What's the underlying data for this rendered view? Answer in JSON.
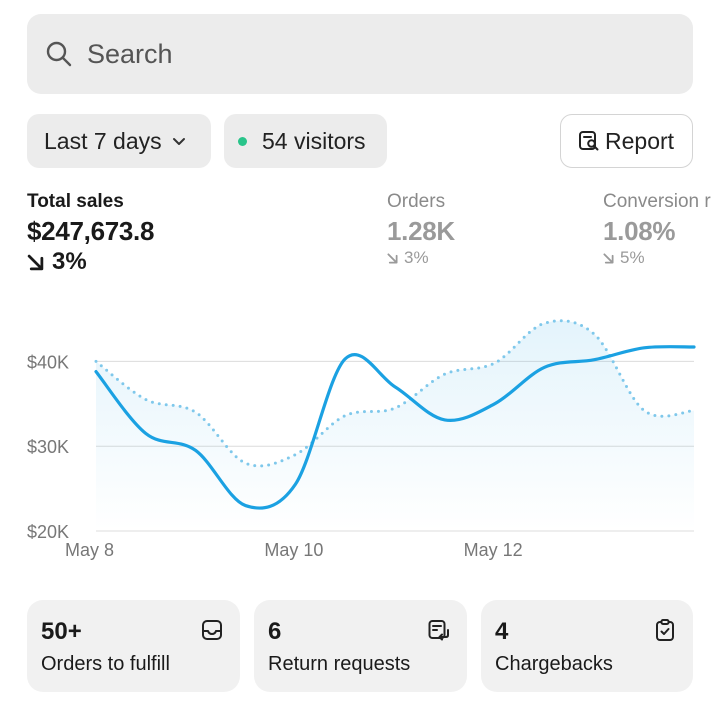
{
  "search": {
    "placeholder": "Search",
    "icon": "search-icon"
  },
  "filters": {
    "range_label": "Last 7 days",
    "visitors_label": "54 visitors",
    "visitors_dot_color": "#29c48a",
    "report_label": "Report"
  },
  "metrics": [
    {
      "title": "Total sales",
      "value": "$247,673.8",
      "change": "3%",
      "direction": "down"
    },
    {
      "title": "Orders",
      "value": "1.28K",
      "change": "3%",
      "direction": "down"
    },
    {
      "title": "Conversion r",
      "value": "1.08%",
      "change": "5%",
      "direction": "down"
    }
  ],
  "chart_data": {
    "type": "line",
    "title": "",
    "xlabel": "",
    "ylabel": "",
    "x": [
      8.0,
      8.5,
      9.0,
      9.5,
      10.0,
      10.5,
      11.0,
      11.5,
      12.0,
      12.5,
      13.0,
      13.5,
      14.0
    ],
    "x_ticks": [
      {
        "x": 8,
        "label": "May 8"
      },
      {
        "x": 10,
        "label": "May 10"
      },
      {
        "x": 12,
        "label": "May 12"
      }
    ],
    "y_ticks": [
      {
        "y": 20000,
        "label": "$20K"
      },
      {
        "y": 30000,
        "label": "$30K"
      },
      {
        "y": 40000,
        "label": "$40K"
      }
    ],
    "xlim": [
      8,
      14
    ],
    "ylim": [
      20000,
      45000
    ],
    "grid": true,
    "series": [
      {
        "style": "solid",
        "color": "#1ba1e2",
        "values": [
          38800,
          31500,
          29500,
          23000,
          25500,
          40300,
          37000,
          33100,
          35000,
          39300,
          40200,
          41600,
          41700
        ]
      },
      {
        "style": "dotted",
        "color": "#7fc8eb",
        "values": [
          40000,
          35500,
          34000,
          28000,
          29000,
          33600,
          34500,
          38500,
          39800,
          44500,
          43200,
          34200,
          34200
        ]
      }
    ]
  },
  "cards": [
    {
      "value": "50+",
      "label": "Orders to fulfill",
      "icon": "inbox-icon"
    },
    {
      "value": "6",
      "label": "Return requests",
      "icon": "return-box-icon"
    },
    {
      "value": "4",
      "label": "Chargebacks",
      "icon": "clipboard-check-icon"
    }
  ]
}
